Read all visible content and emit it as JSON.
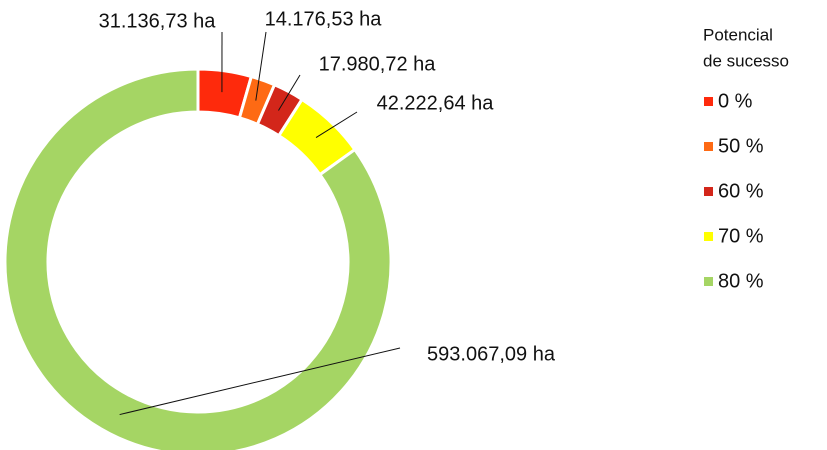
{
  "chart_data": {
    "type": "donut",
    "legend_title": [
      "Potencial",
      "de sucesso"
    ],
    "categories": [
      "0 %",
      "50 %",
      "60 %",
      "70 %",
      "80 %"
    ],
    "values": [
      31136.73,
      14176.53,
      17980.72,
      42222.64,
      593067.09
    ],
    "value_labels": [
      "31.136,73 ha",
      "14.176,53 ha",
      "17.980,72 ha",
      "42.222,64 ha",
      "593.067,09 ha"
    ],
    "colors": [
      "#fe2a0c",
      "#fe6a14",
      "#d3261a",
      "#ffff00",
      "#a5d564"
    ],
    "legend": "right"
  }
}
